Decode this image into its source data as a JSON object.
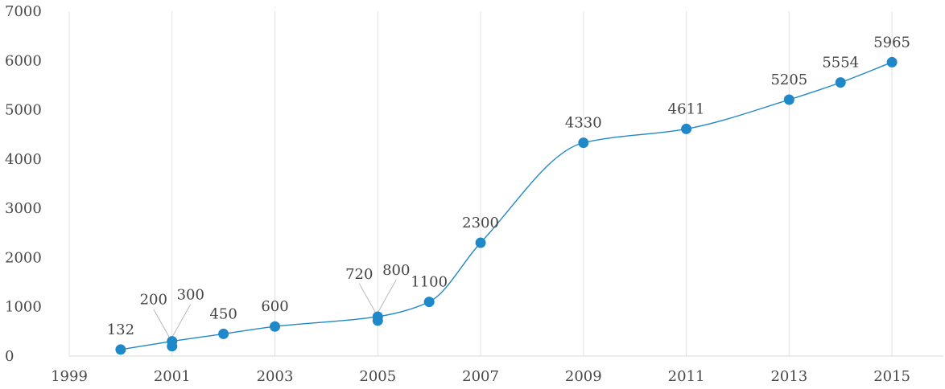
{
  "chart_data": {
    "type": "line",
    "title": "",
    "xlabel": "",
    "ylabel": "",
    "xlim": [
      1999,
      2016
    ],
    "ylim": [
      0,
      7000
    ],
    "x_ticks": [
      1999,
      2001,
      2003,
      2005,
      2007,
      2009,
      2011,
      2013,
      2015
    ],
    "y_ticks": [
      0,
      1000,
      2000,
      3000,
      4000,
      5000,
      6000,
      7000
    ],
    "grid": "vertical",
    "legend": "none",
    "line_style": "smooth",
    "color": "#1f88c8",
    "points": [
      {
        "x": 2000,
        "y": 132,
        "label": "132"
      },
      {
        "x": 2001,
        "y": 200,
        "label": "200"
      },
      {
        "x": 2001,
        "y": 300,
        "label": "300"
      },
      {
        "x": 2002,
        "y": 450,
        "label": "450"
      },
      {
        "x": 2003,
        "y": 600,
        "label": "600"
      },
      {
        "x": 2005,
        "y": 720,
        "label": "720"
      },
      {
        "x": 2005,
        "y": 800,
        "label": "800"
      },
      {
        "x": 2006,
        "y": 1100,
        "label": "1100"
      },
      {
        "x": 2007,
        "y": 2300,
        "label": "2300"
      },
      {
        "x": 2009,
        "y": 4330,
        "label": "4330"
      },
      {
        "x": 2011,
        "y": 4611,
        "label": "4611"
      },
      {
        "x": 2013,
        "y": 5205,
        "label": "5205"
      },
      {
        "x": 2014,
        "y": 5554,
        "label": "5554"
      },
      {
        "x": 2015,
        "y": 5965,
        "label": "5965"
      }
    ]
  }
}
